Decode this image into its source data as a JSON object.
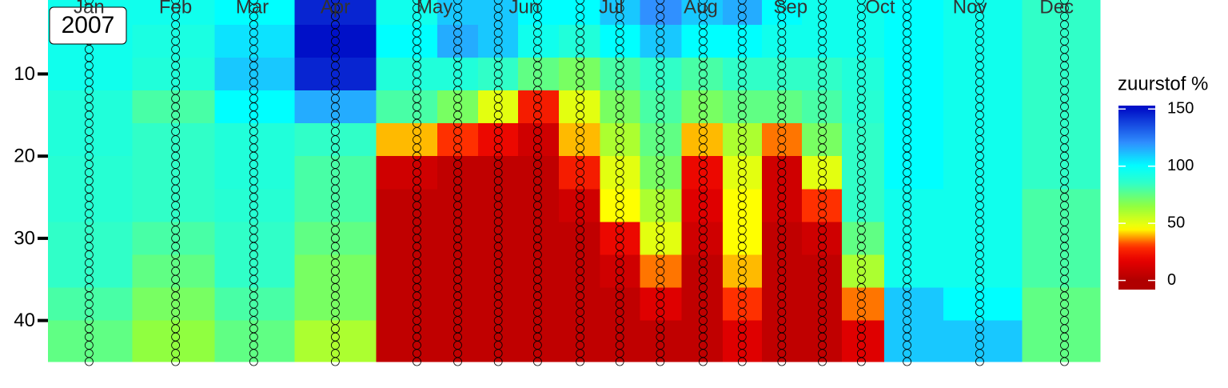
{
  "chart_data": {
    "type": "heatmap",
    "annotation": "2007",
    "legend_title": "zuurstof %",
    "x": [
      14.6,
      44.5,
      71.5,
      99.7,
      127.9,
      142,
      156,
      169.6,
      184.3,
      198,
      212,
      226.8,
      240.3,
      254,
      268,
      281.5,
      297.3,
      322.4,
      351.7
    ],
    "depths": [
      2,
      6,
      10,
      14,
      18,
      22,
      26,
      30,
      34,
      38,
      42
    ],
    "values": [
      [
        95,
        95,
        95,
        90,
        90,
        88,
        88,
        85,
        85,
        80,
        75
      ],
      [
        95,
        92,
        90,
        80,
        85,
        85,
        85,
        80,
        75,
        70,
        65
      ],
      [
        100,
        105,
        110,
        100,
        90,
        90,
        88,
        85,
        85,
        80,
        75
      ],
      [
        145,
        150,
        145,
        115,
        85,
        80,
        80,
        75,
        70,
        70,
        60
      ],
      [
        95,
        100,
        90,
        80,
        40,
        10,
        5,
        5,
        5,
        5,
        5
      ],
      [
        110,
        115,
        90,
        70,
        30,
        5,
        5,
        5,
        5,
        5,
        5
      ],
      [
        110,
        110,
        85,
        50,
        20,
        5,
        5,
        5,
        5,
        5,
        5
      ],
      [
        100,
        95,
        75,
        25,
        10,
        5,
        5,
        5,
        5,
        5,
        5
      ],
      [
        100,
        90,
        70,
        50,
        40,
        25,
        10,
        5,
        5,
        5,
        5
      ],
      [
        110,
        100,
        80,
        70,
        60,
        50,
        45,
        20,
        10,
        5,
        5
      ],
      [
        120,
        110,
        85,
        80,
        75,
        70,
        60,
        50,
        35,
        15,
        5
      ],
      [
        110,
        100,
        80,
        70,
        40,
        20,
        15,
        10,
        5,
        5,
        5
      ],
      [
        115,
        100,
        85,
        75,
        60,
        50,
        45,
        45,
        40,
        30,
        15
      ],
      [
        100,
        95,
        85,
        75,
        35,
        10,
        10,
        5,
        5,
        5,
        5
      ],
      [
        95,
        95,
        85,
        80,
        70,
        50,
        30,
        10,
        5,
        5,
        5
      ],
      [
        95,
        95,
        90,
        88,
        85,
        85,
        85,
        75,
        60,
        35,
        15
      ],
      [
        100,
        100,
        100,
        100,
        100,
        100,
        95,
        95,
        95,
        110,
        110
      ],
      [
        95,
        95,
        95,
        95,
        95,
        95,
        95,
        95,
        95,
        100,
        110
      ],
      [
        85,
        85,
        85,
        85,
        85,
        85,
        80,
        80,
        80,
        75,
        75
      ]
    ],
    "sample_depths": [
      1,
      2,
      3,
      4,
      5,
      6,
      7,
      8,
      9,
      10,
      11,
      12,
      13,
      14,
      15,
      16,
      17,
      18,
      19,
      20,
      21,
      22,
      23,
      24,
      25,
      26,
      27,
      28,
      29,
      30,
      31,
      32,
      33,
      34,
      35,
      36,
      37,
      38,
      39,
      40,
      41,
      42,
      43,
      44,
      45
    ],
    "xlim": [
      0.4,
      364
    ],
    "xticks": [
      {
        "value": 14.6,
        "label": "Jan"
      },
      {
        "value": 44.5,
        "label": "Feb"
      },
      {
        "value": 71,
        "label": "Mar"
      },
      {
        "value": 99.7,
        "label": "Apr"
      },
      {
        "value": 134,
        "label": "May"
      },
      {
        "value": 165,
        "label": "Jun"
      },
      {
        "value": 195,
        "label": "Jul"
      },
      {
        "value": 226,
        "label": "Aug"
      },
      {
        "value": 257,
        "label": "Sep"
      },
      {
        "value": 288,
        "label": "Oct"
      },
      {
        "value": 319,
        "label": "Nov"
      },
      {
        "value": 349,
        "label": "Dec"
      }
    ],
    "ylim": [
      45,
      1
    ],
    "yticks": [
      10,
      20,
      30,
      40
    ],
    "clim": [
      -8,
      153
    ],
    "cticks": [
      0,
      50,
      100,
      150
    ],
    "colorscale": [
      {
        "value": 0,
        "color": "#b00000"
      },
      {
        "value": 18,
        "color": "#e80000"
      },
      {
        "value": 30,
        "color": "#ff3000"
      },
      {
        "value": 45,
        "color": "#ffff00"
      },
      {
        "value": 65,
        "color": "#90ff40"
      },
      {
        "value": 85,
        "color": "#30ffc8"
      },
      {
        "value": 100,
        "color": "#00ffff"
      },
      {
        "value": 120,
        "color": "#3090ff"
      },
      {
        "value": 150,
        "color": "#0010c8"
      }
    ]
  }
}
